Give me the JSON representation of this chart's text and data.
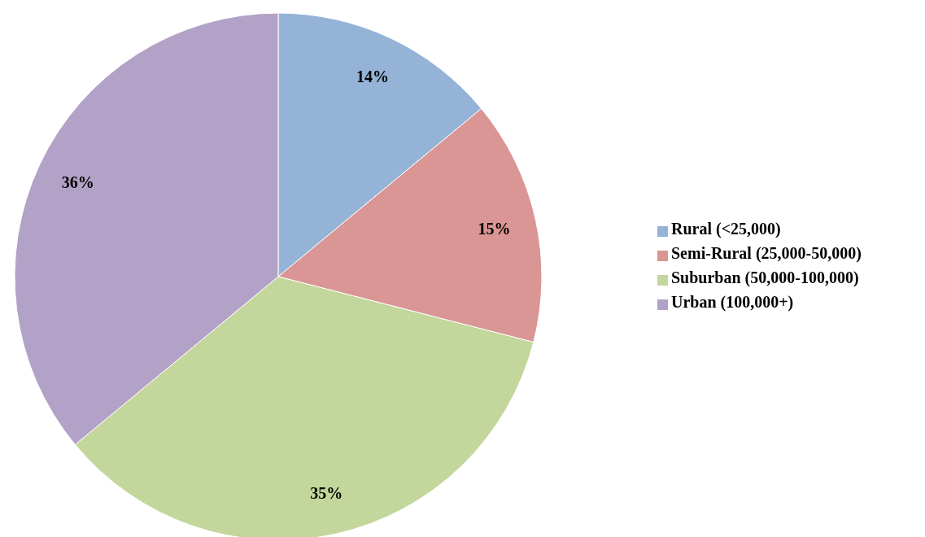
{
  "chart_data": {
    "type": "pie",
    "categories": [
      "Rural (<25,000)",
      "Semi-Rural (25,000-50,000)",
      "Suburban (50,000-100,000)",
      "Urban (100,000+)"
    ],
    "values": [
      14,
      15,
      35,
      36
    ],
    "value_labels": [
      "14%",
      "15%",
      "35%",
      "36%"
    ],
    "colors": [
      "#95b3d7",
      "#d99694",
      "#c3d69b",
      "#b3a2c7"
    ],
    "legend": "right"
  }
}
